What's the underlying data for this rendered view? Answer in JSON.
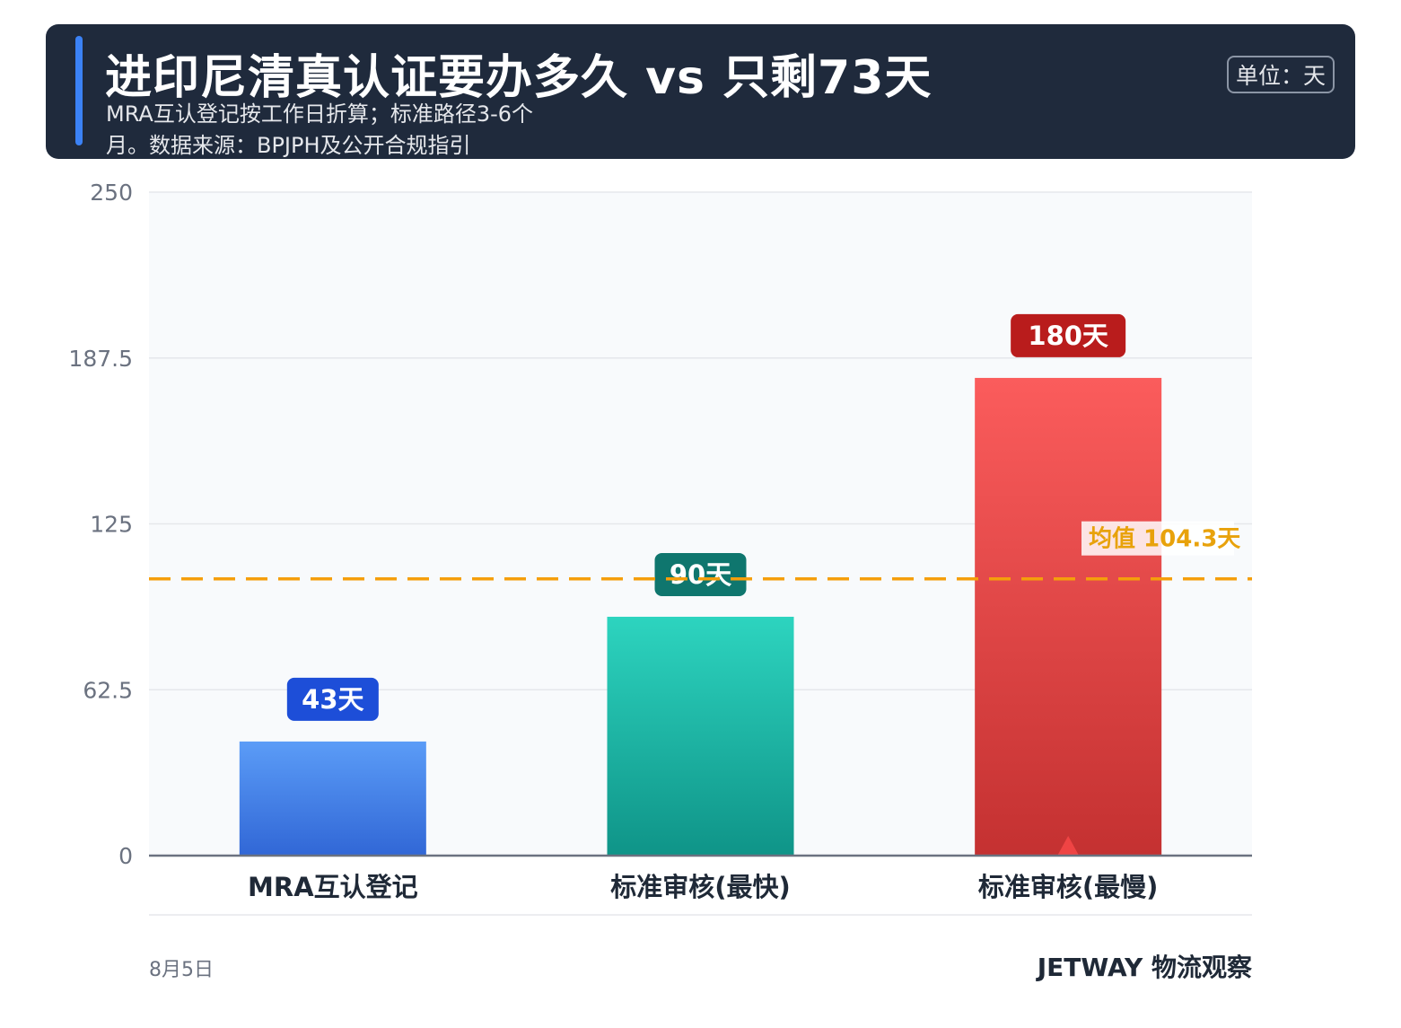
{
  "header": {
    "title": "进印尼清真认证要办多久 vs 只剩73天",
    "subtitle": "MRA互认登记按工作日折算；标准路径3-6个月。数据来源：BPJPH及公开合规指引",
    "unit_label": "单位：天"
  },
  "footer": {
    "date": "8月5日",
    "brand": "JETWAY 物流观察"
  },
  "chart_data": {
    "type": "bar",
    "categories": [
      "MRA互认登记",
      "标准审核(最快)",
      "标准审核(最慢)"
    ],
    "values": [
      43,
      90,
      180
    ],
    "value_labels": [
      "43天",
      "90天",
      "180天"
    ],
    "ylim": [
      0,
      250
    ],
    "yticks": [
      "0",
      "62.5",
      "125",
      "187.5",
      "250"
    ],
    "ytick_values": [
      0,
      62.5,
      125,
      187.5,
      250
    ],
    "grid": true,
    "mean": 104.3,
    "mean_label": "均值 104.3天",
    "colors": {
      "bars_top": [
        "#5b9cf7",
        "#2dd4bf",
        "#fb5c5c"
      ],
      "bars_bottom": [
        "#3167d6",
        "#0f9488",
        "#c43131"
      ],
      "labels": [
        "#1d4ed8",
        "#0f766e",
        "#b91c1c"
      ],
      "mean_line": "#f59e0b",
      "mean_text": "#e8a20b",
      "axis": "#6b7280",
      "grid": "#e5e7eb",
      "plot_bg": "#f8fafc"
    }
  }
}
